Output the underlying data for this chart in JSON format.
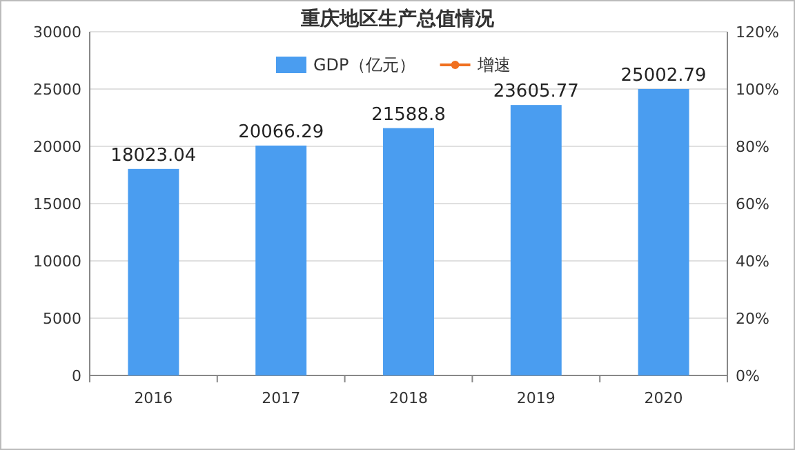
{
  "chart_data": {
    "type": "bar",
    "title": "重庆地区生产总值情况",
    "categories": [
      "2016",
      "2017",
      "2018",
      "2019",
      "2020"
    ],
    "series": [
      {
        "name": "GDP（亿元）",
        "color": "#4a9df0",
        "values": [
          18023.04,
          20066.29,
          21588.8,
          23605.77,
          25002.79
        ]
      },
      {
        "name": "增速",
        "type": "line",
        "axis": "y2",
        "color": "#f07020",
        "marker": "circle",
        "values": [
          null,
          null,
          null,
          null,
          null
        ]
      }
    ],
    "ylim": [
      0,
      30000
    ],
    "yticks": [
      0,
      5000,
      10000,
      15000,
      20000,
      25000,
      30000
    ],
    "y2lim": [
      0,
      120
    ],
    "y2ticks": [
      {
        "value": 0,
        "label": "0%"
      },
      {
        "value": 20,
        "label": "20%"
      },
      {
        "value": 40,
        "label": "40%"
      },
      {
        "value": 60,
        "label": "60%"
      },
      {
        "value": 80,
        "label": "80%"
      },
      {
        "value": 100,
        "label": "100%"
      },
      {
        "value": 120,
        "label": "120%"
      }
    ],
    "grid": "y",
    "legend": "top",
    "data_labels": true
  }
}
